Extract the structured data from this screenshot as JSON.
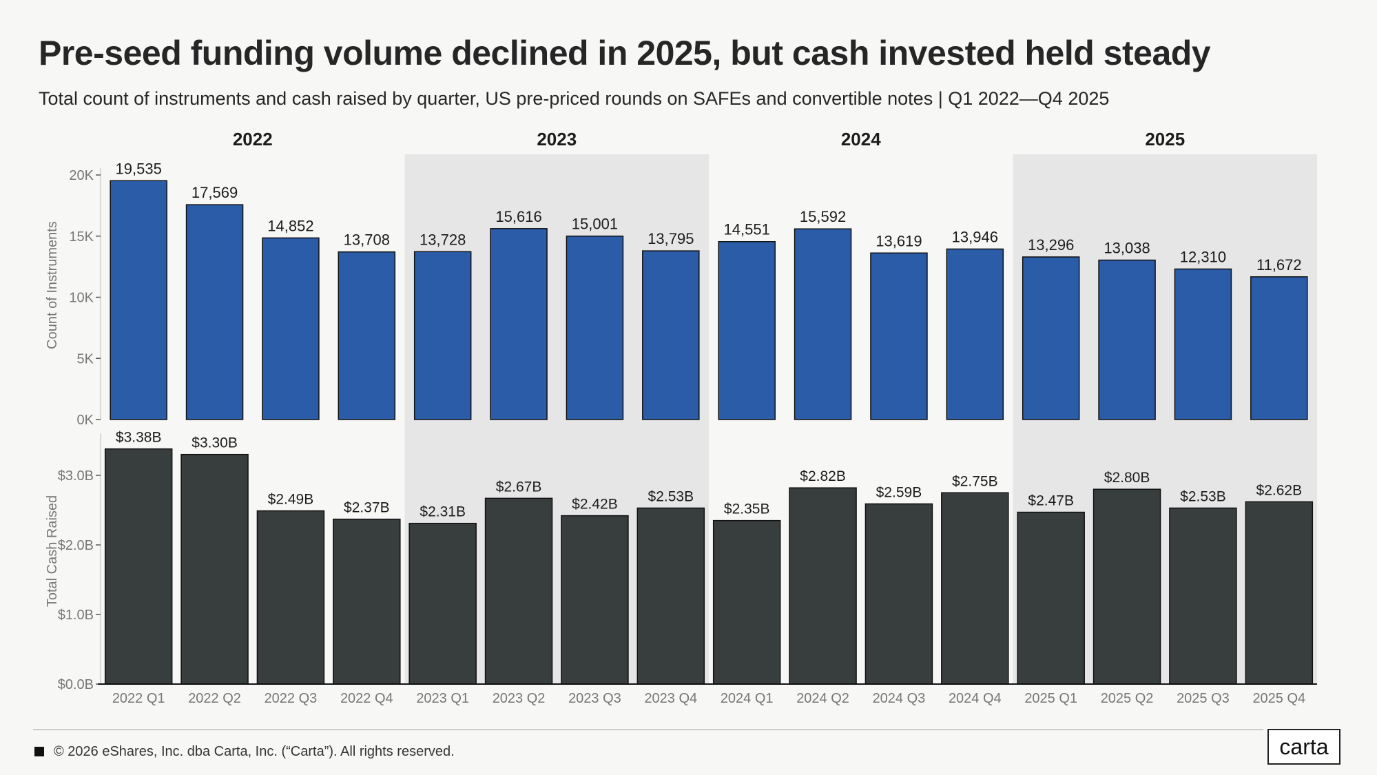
{
  "title": "Pre-seed funding volume declined in 2025, but cash invested held steady",
  "subtitle": "Total count of instruments and cash raised by quarter, US pre-priced rounds on SAFEs and convertible notes | Q1 2022—Q4 2025",
  "footer": {
    "copyright": "© 2026 eShares, Inc. dba Carta, Inc. (“Carta”). All rights reserved.",
    "logo": "carta"
  },
  "colors": {
    "count_bar": "#2a5ca8",
    "cash_bar": "#383d3e",
    "alt_year_band": "#e6e6e6",
    "background": "#f7f7f6"
  },
  "chart_data": [
    {
      "type": "bar",
      "ylabel": "Count of Instruments",
      "ylim": [
        0,
        20000
      ],
      "yticks": [
        0,
        5000,
        10000,
        15000,
        20000
      ],
      "ytick_labels": [
        "0K",
        "5K",
        "10K",
        "15K",
        "20K"
      ],
      "year_groups": [
        {
          "label": "2022",
          "shaded": false
        },
        {
          "label": "2023",
          "shaded": true
        },
        {
          "label": "2024",
          "shaded": false
        },
        {
          "label": "2025",
          "shaded": true
        }
      ],
      "categories": [
        "2022 Q1",
        "2022 Q2",
        "2022 Q3",
        "2022 Q4",
        "2023 Q1",
        "2023 Q2",
        "2023 Q3",
        "2023 Q4",
        "2024 Q1",
        "2024 Q2",
        "2024 Q3",
        "2024 Q4",
        "2025 Q1",
        "2025 Q2",
        "2025 Q3",
        "2025 Q4"
      ],
      "values": [
        19535,
        17569,
        14852,
        13708,
        13728,
        15616,
        15001,
        13795,
        14551,
        15592,
        13619,
        13946,
        13296,
        13038,
        12310,
        11672
      ],
      "data_labels": [
        "19,535",
        "17,569",
        "14,852",
        "13,708",
        "13,728",
        "15,616",
        "15,001",
        "13,795",
        "14,551",
        "15,592",
        "13,619",
        "13,946",
        "13,296",
        "13,038",
        "12,310",
        "11,672"
      ]
    },
    {
      "type": "bar",
      "ylabel": "Total Cash Raised",
      "ylim": [
        0,
        3.5
      ],
      "yticks": [
        0,
        1,
        2,
        3
      ],
      "ytick_labels": [
        "$0.0B",
        "$1.0B",
        "$2.0B",
        "$3.0B"
      ],
      "categories": [
        "2022 Q1",
        "2022 Q2",
        "2022 Q3",
        "2022 Q4",
        "2023 Q1",
        "2023 Q2",
        "2023 Q3",
        "2023 Q4",
        "2024 Q1",
        "2024 Q2",
        "2024 Q3",
        "2024 Q4",
        "2025 Q1",
        "2025 Q2",
        "2025 Q3",
        "2025 Q4"
      ],
      "values": [
        3.38,
        3.3,
        2.49,
        2.37,
        2.31,
        2.67,
        2.42,
        2.53,
        2.35,
        2.82,
        2.59,
        2.75,
        2.47,
        2.8,
        2.53,
        2.62
      ],
      "data_labels": [
        "$3.38B",
        "$3.30B",
        "$2.49B",
        "$2.37B",
        "$2.31B",
        "$2.67B",
        "$2.42B",
        "$2.53B",
        "$2.35B",
        "$2.82B",
        "$2.59B",
        "$2.75B",
        "$2.47B",
        "$2.80B",
        "$2.53B",
        "$2.62B"
      ]
    }
  ]
}
